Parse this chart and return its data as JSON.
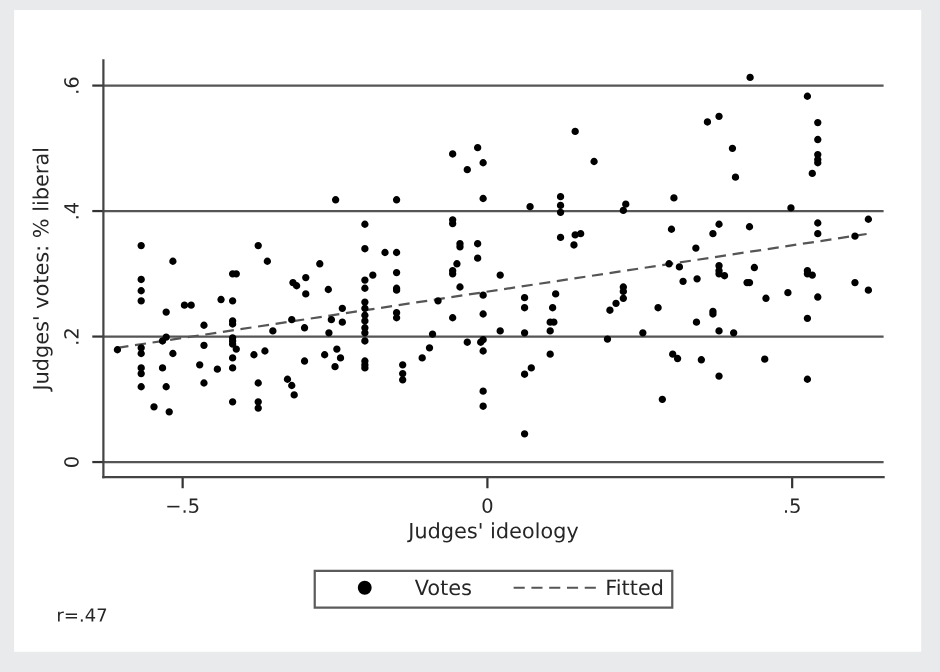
{
  "chart_data": {
    "type": "scatter",
    "xlabel": "Judges' ideology",
    "ylabel": "Judges' votes: % liberal",
    "annotations": [
      "r=.47"
    ],
    "xlim": [
      -0.63,
      0.65
    ],
    "ylim": [
      -0.024,
      0.64
    ],
    "xticks": [
      {
        "value": -0.5,
        "label": "−.5"
      },
      0,
      {
        "value": 0.5,
        "label": ".5"
      }
    ],
    "yticks": [
      0,
      {
        "value": 0.2,
        "label": ".2"
      },
      {
        "value": 0.4,
        "label": ".4"
      },
      {
        "value": 0.6,
        "label": ".6"
      }
    ],
    "grid": "y",
    "legend": "bottom",
    "series": [
      {
        "name": "Votes",
        "marker": "circle",
        "color": "#000000",
        "x": [
          -0.607,
          -0.568,
          -0.568,
          -0.568,
          -0.568,
          -0.568,
          -0.568,
          -0.568,
          -0.568,
          -0.568,
          -0.547,
          -0.533,
          -0.533,
          -0.527,
          -0.527,
          -0.527,
          -0.522,
          -0.516,
          -0.516,
          -0.497,
          -0.486,
          -0.472,
          -0.465,
          -0.465,
          -0.465,
          -0.443,
          -0.437,
          -0.418,
          -0.418,
          -0.418,
          -0.418,
          -0.418,
          -0.418,
          -0.418,
          -0.418,
          -0.418,
          -0.418,
          -0.412,
          -0.412,
          -0.383,
          -0.376,
          -0.376,
          -0.376,
          -0.376,
          -0.365,
          -0.361,
          -0.352,
          -0.328,
          -0.321,
          -0.317,
          -0.321,
          -0.319,
          -0.313,
          -0.3,
          -0.3,
          -0.298,
          -0.298,
          -0.275,
          -0.267,
          -0.261,
          -0.26,
          -0.256,
          -0.25,
          -0.249,
          -0.247,
          -0.241,
          -0.238,
          -0.238,
          -0.201,
          -0.201,
          -0.201,
          -0.201,
          -0.201,
          -0.201,
          -0.201,
          -0.201,
          -0.201,
          -0.201,
          -0.201,
          -0.201,
          -0.201,
          -0.201,
          -0.188,
          -0.168,
          -0.149,
          -0.149,
          -0.149,
          -0.149,
          -0.149,
          -0.149,
          -0.149,
          -0.139,
          -0.139,
          -0.139,
          -0.107,
          -0.095,
          -0.09,
          -0.081,
          -0.057,
          -0.057,
          -0.057,
          -0.057,
          -0.057,
          -0.057,
          -0.05,
          -0.045,
          -0.045,
          -0.045,
          -0.033,
          -0.033,
          -0.016,
          -0.016,
          -0.016,
          -0.007,
          -0.007,
          -0.007,
          -0.007,
          -0.007,
          -0.007,
          -0.007,
          -0.007,
          -0.011,
          0.021,
          0.021,
          0.061,
          0.061,
          0.061,
          0.061,
          0.061,
          0.07,
          0.072,
          0.103,
          0.103,
          0.103,
          0.107,
          0.109,
          0.112,
          0.12,
          0.12,
          0.12,
          0.12,
          0.142,
          0.144,
          0.153,
          0.144,
          0.175,
          0.197,
          0.201,
          0.211,
          0.223,
          0.223,
          0.223,
          0.223,
          0.227,
          0.255,
          0.28,
          0.287,
          0.302,
          0.306,
          0.304,
          0.312,
          0.298,
          0.315,
          0.321,
          0.342,
          0.344,
          0.343,
          0.351,
          0.361,
          0.37,
          0.37,
          0.37,
          0.38,
          0.38,
          0.38,
          0.38,
          0.38,
          0.38,
          0.38,
          0.389,
          0.402,
          0.404,
          0.407,
          0.426,
          0.43,
          0.431,
          0.43,
          0.438,
          0.457,
          0.455,
          0.493,
          0.498,
          0.525,
          0.525,
          0.525,
          0.525,
          0.525,
          0.533,
          0.533,
          0.542,
          0.542,
          0.542,
          0.542,
          0.542,
          0.542,
          0.542,
          0.542,
          0.603,
          0.603,
          0.625,
          0.625
        ],
        "values": [
          0.179,
          0.345,
          0.291,
          0.273,
          0.257,
          0.182,
          0.173,
          0.15,
          0.141,
          0.12,
          0.088,
          0.15,
          0.193,
          0.239,
          0.199,
          0.12,
          0.08,
          0.32,
          0.173,
          0.25,
          0.25,
          0.155,
          0.218,
          0.186,
          0.126,
          0.148,
          0.259,
          0.3,
          0.257,
          0.225,
          0.22,
          0.198,
          0.193,
          0.188,
          0.166,
          0.15,
          0.096,
          0.3,
          0.18,
          0.171,
          0.345,
          0.126,
          0.096,
          0.086,
          0.177,
          0.32,
          0.209,
          0.132,
          0.122,
          0.107,
          0.227,
          0.286,
          0.281,
          0.161,
          0.214,
          0.294,
          0.268,
          0.316,
          0.171,
          0.275,
          0.206,
          0.227,
          0.152,
          0.418,
          0.18,
          0.166,
          0.245,
          0.223,
          0.379,
          0.34,
          0.29,
          0.277,
          0.255,
          0.245,
          0.234,
          0.225,
          0.214,
          0.206,
          0.193,
          0.161,
          0.155,
          0.15,
          0.298,
          0.334,
          0.418,
          0.334,
          0.302,
          0.277,
          0.274,
          0.238,
          0.23,
          0.155,
          0.141,
          0.131,
          0.166,
          0.182,
          0.204,
          0.257,
          0.491,
          0.386,
          0.38,
          0.305,
          0.3,
          0.23,
          0.316,
          0.348,
          0.343,
          0.279,
          0.466,
          0.191,
          0.501,
          0.348,
          0.325,
          0.477,
          0.42,
          0.266,
          0.236,
          0.195,
          0.177,
          0.113,
          0.089,
          0.191,
          0.298,
          0.209,
          0.262,
          0.246,
          0.206,
          0.14,
          0.045,
          0.407,
          0.15,
          0.223,
          0.209,
          0.172,
          0.246,
          0.223,
          0.268,
          0.423,
          0.409,
          0.398,
          0.358,
          0.346,
          0.362,
          0.364,
          0.527,
          0.479,
          0.196,
          0.242,
          0.253,
          0.401,
          0.279,
          0.272,
          0.261,
          0.411,
          0.206,
          0.246,
          0.1,
          0.371,
          0.421,
          0.172,
          0.165,
          0.316,
          0.311,
          0.288,
          0.341,
          0.292,
          0.223,
          0.163,
          0.542,
          0.364,
          0.24,
          0.236,
          0.551,
          0.379,
          0.313,
          0.305,
          0.3,
          0.209,
          0.137,
          0.297,
          0.5,
          0.206,
          0.454,
          0.286,
          0.286,
          0.613,
          0.375,
          0.31,
          0.261,
          0.164,
          0.27,
          0.405,
          0.583,
          0.305,
          0.3,
          0.229,
          0.132,
          0.46,
          0.298,
          0.541,
          0.514,
          0.49,
          0.482,
          0.477,
          0.381,
          0.364,
          0.263,
          0.36,
          0.286,
          0.387,
          0.274
        ]
      },
      {
        "name": "Fitted",
        "type": "line",
        "line_style": "dashed",
        "color": "#555555",
        "x": [
          -0.607,
          0.626
        ],
        "values": [
          0.182,
          0.364
        ]
      }
    ]
  }
}
